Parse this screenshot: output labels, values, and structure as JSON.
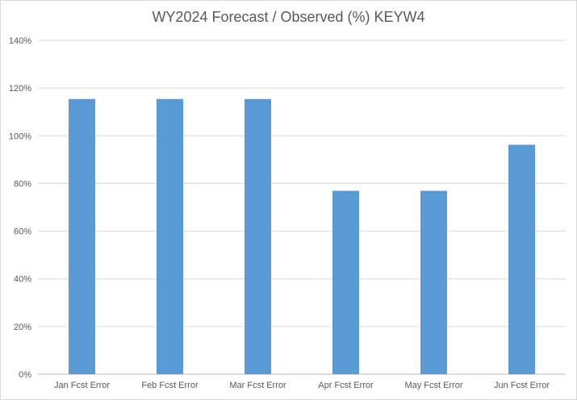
{
  "chart_data": {
    "type": "bar",
    "title": "WY2024 Forecast / Observed (%) KEYW4",
    "categories": [
      "Jan Fcst Error",
      "Feb Fcst Error",
      "Mar Fcst Error",
      "Apr Fcst Error",
      "May Fcst Error",
      "Jun Fcst Error"
    ],
    "values": [
      115.4,
      115.4,
      115.4,
      76.9,
      76.9,
      96.2
    ],
    "yticks": [
      "0%",
      "20%",
      "40%",
      "60%",
      "80%",
      "100%",
      "120%",
      "140%"
    ],
    "ylim": [
      0,
      140
    ],
    "ytick_step": 20,
    "xlabel": "",
    "ylabel": "",
    "grid": true,
    "bar_color": "#5b9bd5",
    "grid_color": "#d9d9d9"
  }
}
